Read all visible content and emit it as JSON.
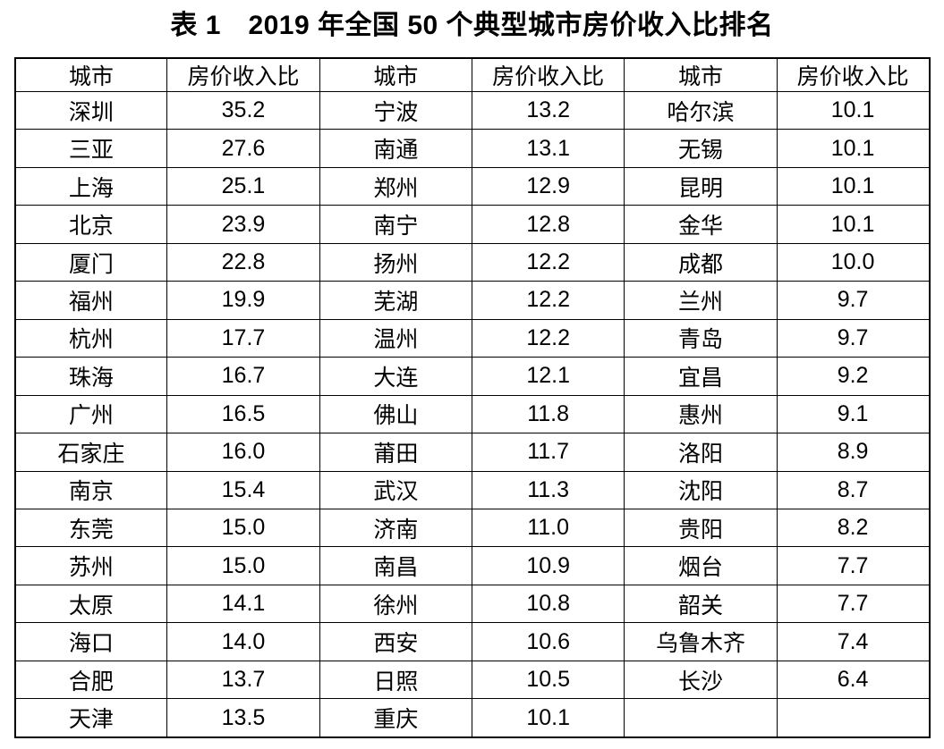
{
  "title": "表 1　2019 年全国 50 个典型城市房价收入比排名",
  "table": {
    "column_headers": [
      "城市",
      "房价收入比",
      "城市",
      "房价收入比",
      "城市",
      "房价收入比"
    ],
    "rows": [
      [
        "深圳",
        "35.2",
        "宁波",
        "13.2",
        "哈尔滨",
        "10.1"
      ],
      [
        "三亚",
        "27.6",
        "南通",
        "13.1",
        "无锡",
        "10.1"
      ],
      [
        "上海",
        "25.1",
        "郑州",
        "12.9",
        "昆明",
        "10.1"
      ],
      [
        "北京",
        "23.9",
        "南宁",
        "12.8",
        "金华",
        "10.1"
      ],
      [
        "厦门",
        "22.8",
        "扬州",
        "12.2",
        "成都",
        "10.0"
      ],
      [
        "福州",
        "19.9",
        "芜湖",
        "12.2",
        "兰州",
        "9.7"
      ],
      [
        "杭州",
        "17.7",
        "温州",
        "12.2",
        "青岛",
        "9.7"
      ],
      [
        "珠海",
        "16.7",
        "大连",
        "12.1",
        "宜昌",
        "9.2"
      ],
      [
        "广州",
        "16.5",
        "佛山",
        "11.8",
        "惠州",
        "9.1"
      ],
      [
        "石家庄",
        "16.0",
        "莆田",
        "11.7",
        "洛阳",
        "8.9"
      ],
      [
        "南京",
        "15.4",
        "武汉",
        "11.3",
        "沈阳",
        "8.7"
      ],
      [
        "东莞",
        "15.0",
        "济南",
        "11.0",
        "贵阳",
        "8.2"
      ],
      [
        "苏州",
        "15.0",
        "南昌",
        "10.9",
        "烟台",
        "7.7"
      ],
      [
        "太原",
        "14.1",
        "徐州",
        "10.8",
        "韶关",
        "7.7"
      ],
      [
        "海口",
        "14.0",
        "西安",
        "10.6",
        "乌鲁木齐",
        "7.4"
      ],
      [
        "合肥",
        "13.7",
        "日照",
        "10.5",
        "长沙",
        "6.4"
      ],
      [
        "天津",
        "13.5",
        "重庆",
        "10.1",
        "",
        ""
      ]
    ]
  },
  "chart_data": {
    "type": "table",
    "title": "表 1　2019 年全国 50 个典型城市房价收入比排名",
    "columns": [
      "城市",
      "房价收入比"
    ],
    "cities": [
      "深圳",
      "三亚",
      "上海",
      "北京",
      "厦门",
      "福州",
      "杭州",
      "珠海",
      "广州",
      "石家庄",
      "南京",
      "东莞",
      "苏州",
      "太原",
      "海口",
      "合肥",
      "天津",
      "宁波",
      "南通",
      "郑州",
      "南宁",
      "扬州",
      "芜湖",
      "温州",
      "大连",
      "佛山",
      "莆田",
      "武汉",
      "济南",
      "南昌",
      "徐州",
      "西安",
      "日照",
      "重庆",
      "哈尔滨",
      "无锡",
      "昆明",
      "金华",
      "成都",
      "兰州",
      "青岛",
      "宜昌",
      "惠州",
      "洛阳",
      "沈阳",
      "贵阳",
      "烟台",
      "韶关",
      "乌鲁木齐",
      "长沙"
    ],
    "values": [
      35.2,
      27.6,
      25.1,
      23.9,
      22.8,
      19.9,
      17.7,
      16.7,
      16.5,
      16.0,
      15.4,
      15.0,
      15.0,
      14.1,
      14.0,
      13.7,
      13.5,
      13.2,
      13.1,
      12.9,
      12.8,
      12.2,
      12.2,
      12.2,
      12.1,
      11.8,
      11.7,
      11.3,
      11.0,
      10.9,
      10.8,
      10.6,
      10.5,
      10.1,
      10.1,
      10.1,
      10.1,
      10.1,
      10.0,
      9.7,
      9.7,
      9.2,
      9.1,
      8.9,
      8.7,
      8.2,
      7.7,
      7.7,
      7.4,
      6.4
    ]
  }
}
